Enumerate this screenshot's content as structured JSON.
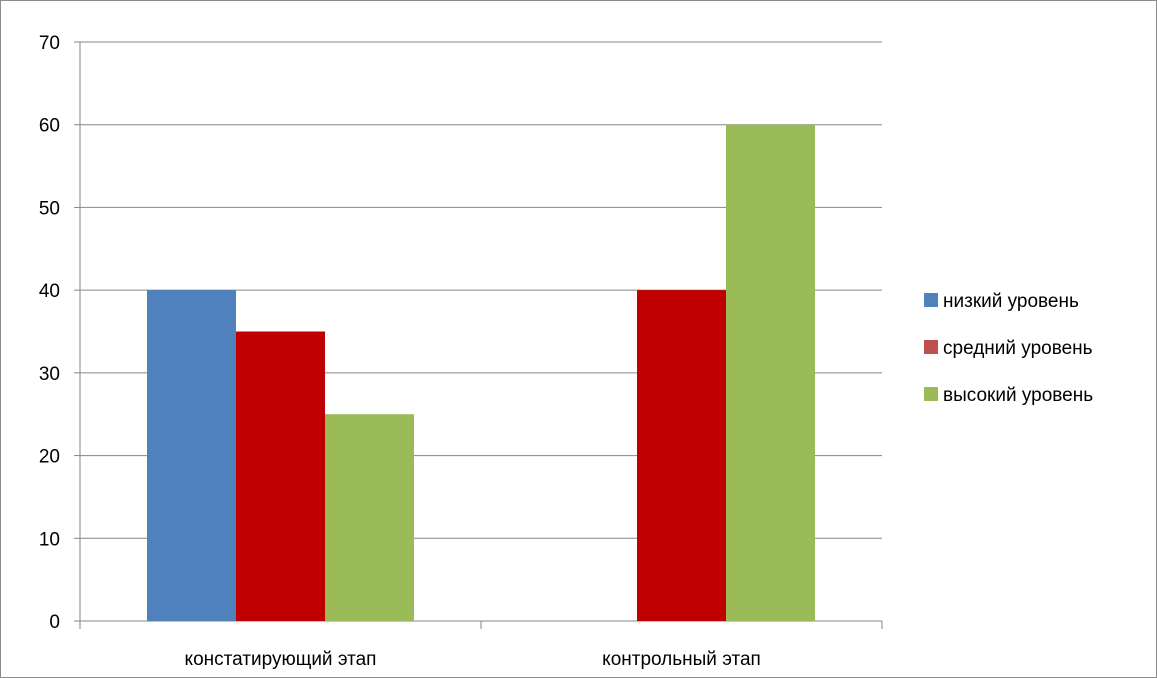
{
  "chart_data": {
    "type": "bar",
    "categories": [
      "констатирующий этап",
      "контрольный этап"
    ],
    "series": [
      {
        "name": "низкий уровень",
        "values": [
          40,
          0
        ],
        "color": "#4f81bd"
      },
      {
        "name": "средний уровень",
        "values": [
          35,
          40
        ],
        "color": "#c00000"
      },
      {
        "name": "высокий уровень",
        "values": [
          25,
          60
        ],
        "color": "#9bbb59"
      }
    ],
    "legend_colors": [
      "#4f81bd",
      "#c0504d",
      "#9bbb59"
    ],
    "ylim": [
      0,
      70
    ],
    "yticks": [
      "0",
      "10",
      "20",
      "30",
      "40",
      "50",
      "60",
      "70"
    ],
    "grid": true,
    "legend_position": "right"
  }
}
